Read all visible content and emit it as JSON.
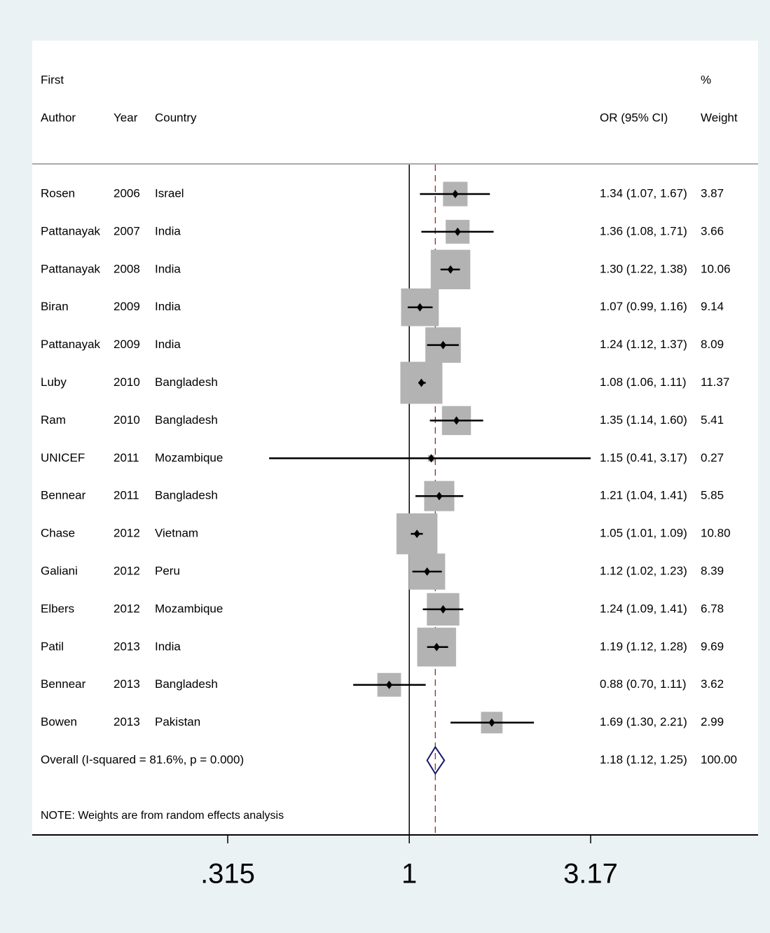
{
  "chart_data": {
    "type": "forest",
    "headers": {
      "author_line1": "First",
      "author_line2": "Author",
      "year": "Year",
      "country": "Country",
      "effect": "OR (95% CI)",
      "weight_line1": "%",
      "weight_line2": "Weight"
    },
    "studies": [
      {
        "author": "Rosen",
        "year": "2006",
        "country": "Israel",
        "or": 1.34,
        "lo": 1.07,
        "hi": 1.67,
        "ci_text": "1.34 (1.07, 1.67)",
        "weight": 3.87,
        "weight_text": "3.87"
      },
      {
        "author": "Pattanayak",
        "year": "2007",
        "country": "India",
        "or": 1.36,
        "lo": 1.08,
        "hi": 1.71,
        "ci_text": "1.36 (1.08, 1.71)",
        "weight": 3.66,
        "weight_text": "3.66"
      },
      {
        "author": "Pattanayak",
        "year": "2008",
        "country": "India",
        "or": 1.3,
        "lo": 1.22,
        "hi": 1.38,
        "ci_text": "1.30 (1.22, 1.38)",
        "weight": 10.06,
        "weight_text": "10.06"
      },
      {
        "author": "Biran",
        "year": "2009",
        "country": "India",
        "or": 1.07,
        "lo": 0.99,
        "hi": 1.16,
        "ci_text": "1.07 (0.99, 1.16)",
        "weight": 9.14,
        "weight_text": "9.14"
      },
      {
        "author": "Pattanayak",
        "year": "2009",
        "country": "India",
        "or": 1.24,
        "lo": 1.12,
        "hi": 1.37,
        "ci_text": "1.24 (1.12, 1.37)",
        "weight": 8.09,
        "weight_text": "8.09"
      },
      {
        "author": "Luby",
        "year": "2010",
        "country": "Bangladesh",
        "or": 1.08,
        "lo": 1.06,
        "hi": 1.11,
        "ci_text": "1.08 (1.06, 1.11)",
        "weight": 11.37,
        "weight_text": "11.37"
      },
      {
        "author": "Ram",
        "year": "2010",
        "country": "Bangladesh",
        "or": 1.35,
        "lo": 1.14,
        "hi": 1.6,
        "ci_text": "1.35 (1.14, 1.60)",
        "weight": 5.41,
        "weight_text": "5.41"
      },
      {
        "author": "UNICEF",
        "year": "2011",
        "country": "Mozambique",
        "or": 1.15,
        "lo": 0.41,
        "hi": 3.17,
        "ci_text": "1.15 (0.41, 3.17)",
        "weight": 0.27,
        "weight_text": "0.27"
      },
      {
        "author": "Bennear",
        "year": "2011",
        "country": "Bangladesh",
        "or": 1.21,
        "lo": 1.04,
        "hi": 1.41,
        "ci_text": "1.21 (1.04, 1.41)",
        "weight": 5.85,
        "weight_text": "5.85"
      },
      {
        "author": "Chase",
        "year": "2012",
        "country": "Vietnam",
        "or": 1.05,
        "lo": 1.01,
        "hi": 1.09,
        "ci_text": "1.05 (1.01, 1.09)",
        "weight": 10.8,
        "weight_text": "10.80"
      },
      {
        "author": "Galiani",
        "year": "2012",
        "country": "Peru",
        "or": 1.12,
        "lo": 1.02,
        "hi": 1.23,
        "ci_text": "1.12 (1.02, 1.23)",
        "weight": 8.39,
        "weight_text": "8.39"
      },
      {
        "author": "Elbers",
        "year": "2012",
        "country": "Mozambique",
        "or": 1.24,
        "lo": 1.09,
        "hi": 1.41,
        "ci_text": "1.24 (1.09, 1.41)",
        "weight": 6.78,
        "weight_text": "6.78"
      },
      {
        "author": "Patil",
        "year": "2013",
        "country": "India",
        "or": 1.19,
        "lo": 1.12,
        "hi": 1.28,
        "ci_text": "1.19 (1.12, 1.28)",
        "weight": 9.69,
        "weight_text": "9.69"
      },
      {
        "author": "Bennear",
        "year": "2013",
        "country": "Bangladesh",
        "or": 0.88,
        "lo": 0.7,
        "hi": 1.11,
        "ci_text": "0.88 (0.70, 1.11)",
        "weight": 3.62,
        "weight_text": "3.62"
      },
      {
        "author": "Bowen",
        "year": "2013",
        "country": "Pakistan",
        "or": 1.69,
        "lo": 1.3,
        "hi": 2.21,
        "ci_text": "1.69 (1.30, 2.21)",
        "weight": 2.99,
        "weight_text": "2.99"
      }
    ],
    "overall": {
      "label": "Overall  (I-squared = 81.6%, p = 0.000)",
      "or": 1.18,
      "lo": 1.12,
      "hi": 1.25,
      "ci_text": "1.18 (1.12, 1.25)",
      "weight_text": "100.00"
    },
    "note": "NOTE: Weights are from random effects analysis",
    "x_axis": {
      "scale": "log",
      "null_value": 1,
      "range": [
        0.315,
        3.17
      ],
      "ticks": [
        {
          "value": 0.315,
          "label": ".315"
        },
        {
          "value": 1,
          "label": "1"
        },
        {
          "value": 3.17,
          "label": "3.17"
        }
      ]
    },
    "colors": {
      "weight_box": "#b3b3b3",
      "ci_line": "#000000",
      "overall_diamond": "#1a1a6e",
      "overall_line": "#8b1a1a",
      "background": "#eaf2f3"
    }
  }
}
